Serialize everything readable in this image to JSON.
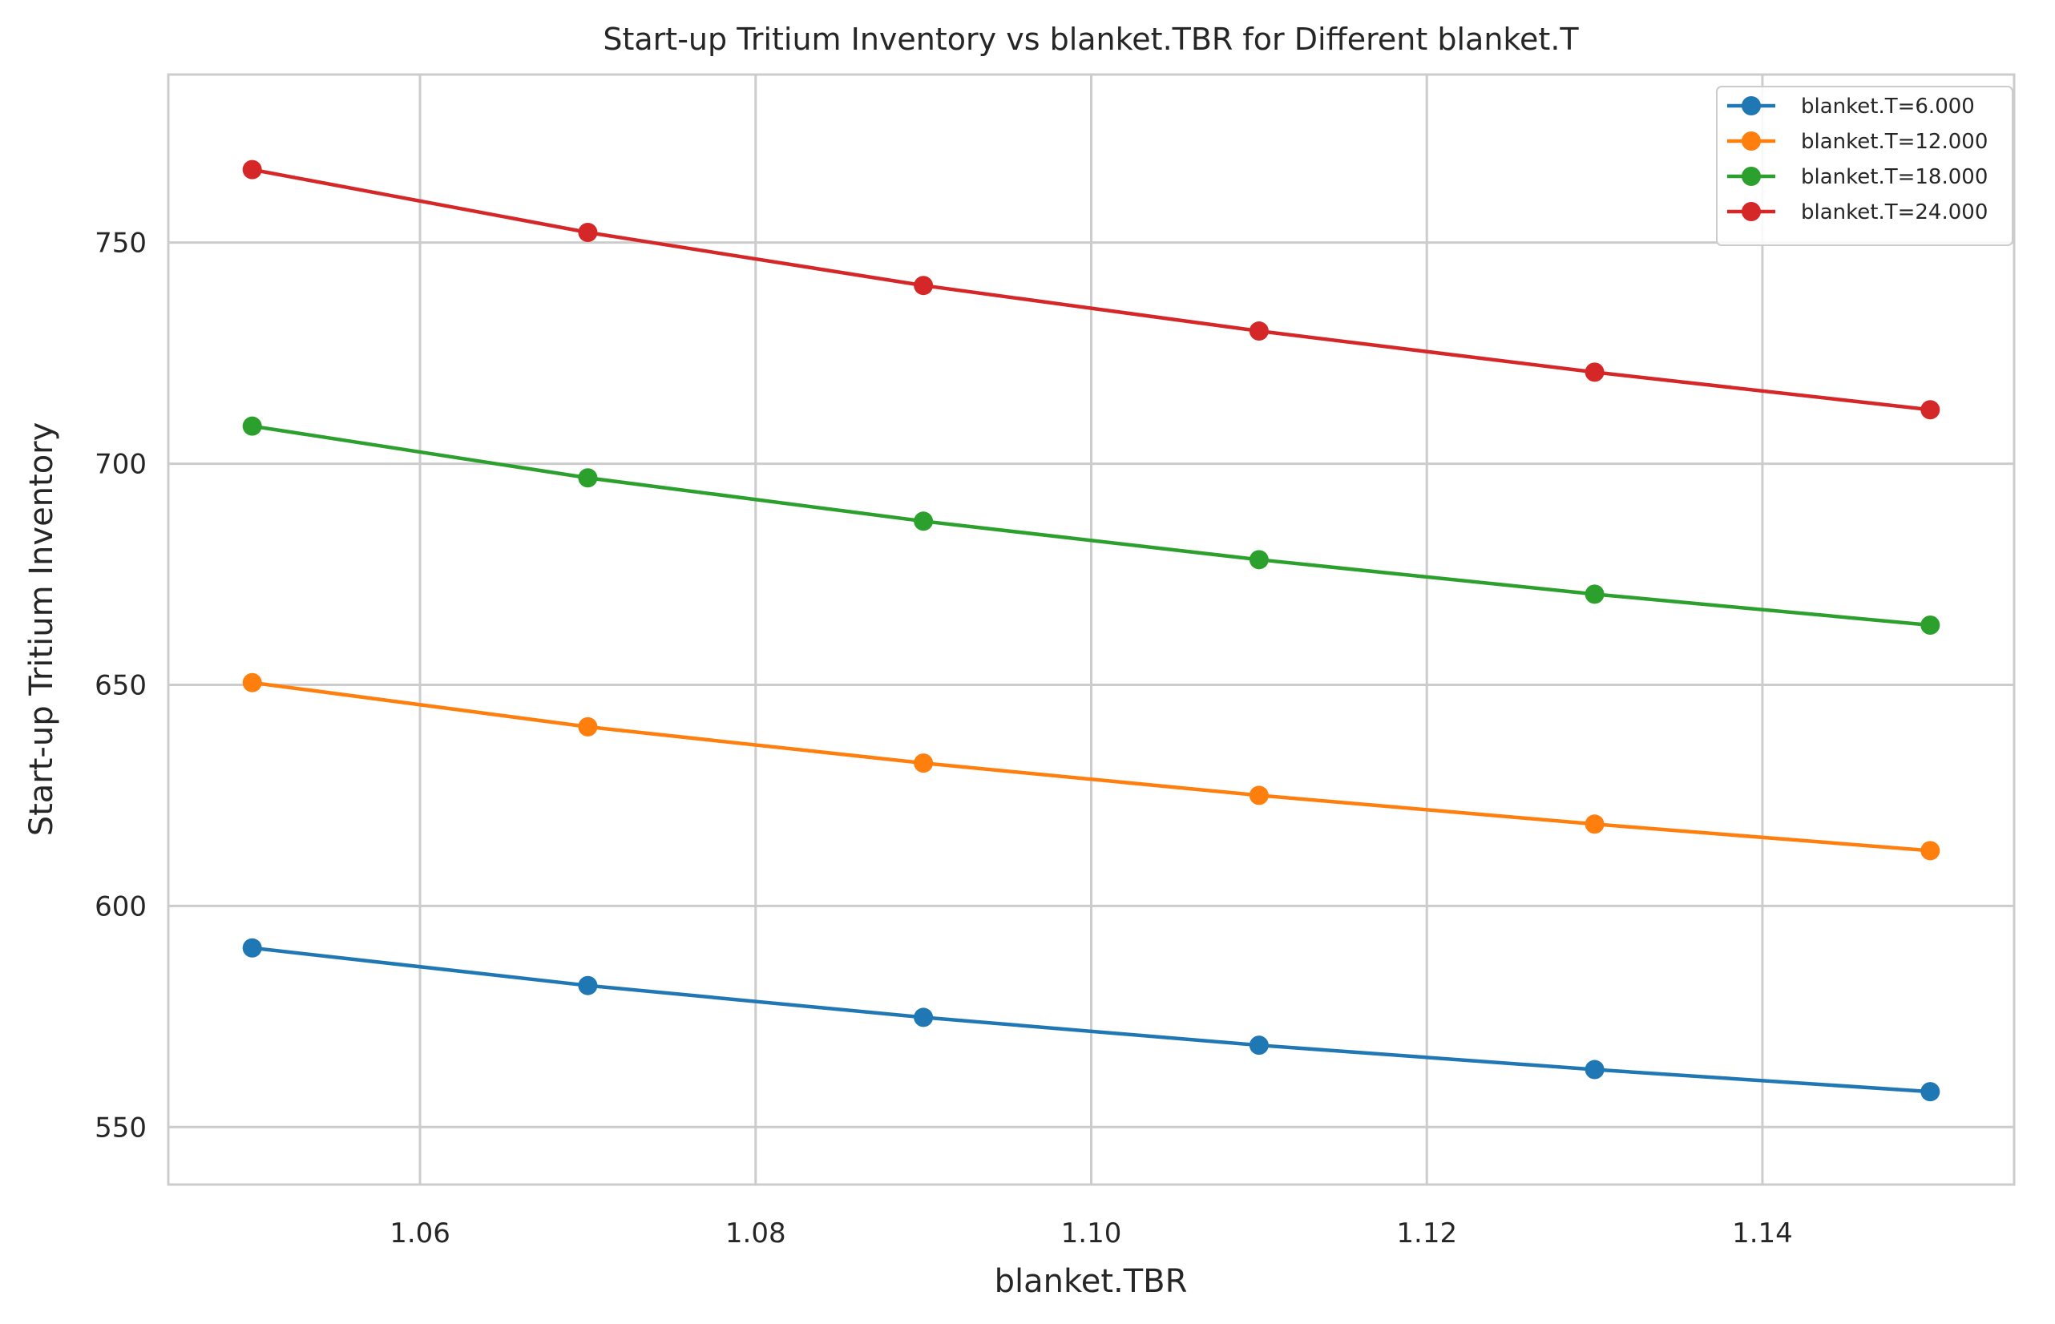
{
  "chart_data": {
    "type": "line",
    "title": "Start-up Tritium Inventory vs blanket.TBR for Different blanket.T",
    "xlabel": "blanket.TBR",
    "ylabel": "Start-up Tritium Inventory",
    "xlim": [
      1.045,
      1.155
    ],
    "ylim": [
      537,
      788
    ],
    "xticks": [
      1.06,
      1.08,
      1.1,
      1.12,
      1.14
    ],
    "xtick_labels": [
      "1.06",
      "1.08",
      "1.10",
      "1.12",
      "1.14"
    ],
    "yticks": [
      550,
      600,
      650,
      700,
      750
    ],
    "ytick_labels": [
      "550",
      "600",
      "650",
      "700",
      "750"
    ],
    "grid": true,
    "legend_position": "top-right",
    "x": [
      1.05,
      1.07,
      1.09,
      1.11,
      1.13,
      1.15
    ],
    "series": [
      {
        "name": "blanket.T=6.000",
        "color": "#1f77b4",
        "values": [
          590.5,
          582.0,
          574.8,
          568.5,
          563.0,
          558.0
        ]
      },
      {
        "name": "blanket.T=12.000",
        "color": "#ff7f0e",
        "values": [
          650.5,
          640.5,
          632.3,
          625.0,
          618.5,
          612.5
        ]
      },
      {
        "name": "blanket.T=18.000",
        "color": "#2ca02c",
        "values": [
          708.5,
          696.8,
          687.0,
          678.3,
          670.5,
          663.5
        ]
      },
      {
        "name": "blanket.T=24.000",
        "color": "#d62728",
        "values": [
          766.5,
          752.3,
          740.3,
          730.0,
          720.7,
          712.2
        ]
      }
    ]
  }
}
